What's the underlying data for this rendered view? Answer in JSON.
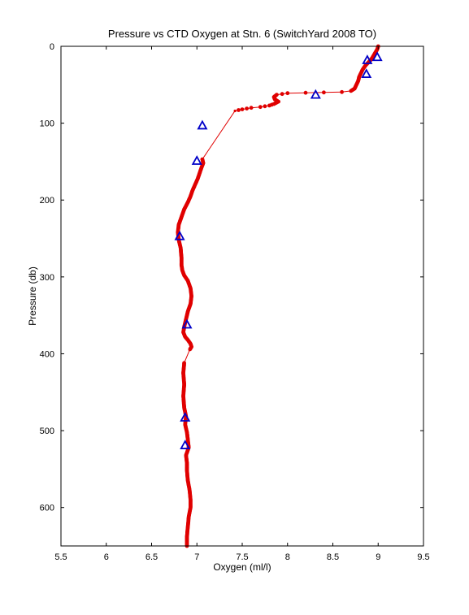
{
  "chart_data": {
    "type": "line",
    "title": "Pressure vs CTD Oxygen at Stn. 6 (SwitchYard 2008 TO)",
    "xlabel": "Oxygen (ml/l)",
    "ylabel": "Pressure (db)",
    "xlim": [
      5.5,
      9.5
    ],
    "ylim": [
      0,
      650
    ],
    "y_reversed": true,
    "grid": false,
    "x_ticks": [
      5.5,
      6,
      6.5,
      7,
      7.5,
      8,
      8.5,
      9,
      9.5
    ],
    "x_tick_labels": [
      "5.5",
      "6",
      "6.5",
      "7",
      "7.5",
      "8",
      "8.5",
      "9",
      "9.5"
    ],
    "y_ticks": [
      0,
      100,
      200,
      300,
      400,
      500,
      600
    ],
    "y_tick_labels": [
      "0",
      "100",
      "200",
      "300",
      "400",
      "500",
      "600"
    ],
    "colors": {
      "ctd": "#e00000",
      "bottle": "#0000c8"
    },
    "series": [
      {
        "style": "line-with-dots",
        "x": [
          9.0,
          8.99,
          8.97,
          8.95,
          8.93,
          8.9,
          8.86,
          8.83,
          8.81,
          8.79,
          8.78,
          8.76,
          8.74,
          8.7,
          8.6,
          8.4,
          8.2,
          8.0,
          7.88,
          7.85,
          7.86,
          7.9,
          7.85,
          7.8,
          7.7,
          7.6,
          7.5,
          7.42,
          7.06,
          7.07,
          7.05,
          7.03,
          7.01,
          6.98,
          6.95,
          6.93,
          6.9,
          6.86,
          6.83,
          6.8,
          6.79,
          6.8,
          6.82,
          6.83,
          6.83,
          6.84,
          6.86,
          6.9,
          6.93,
          6.94,
          6.93,
          6.9,
          6.88,
          6.86,
          6.85,
          6.87,
          6.9,
          6.93,
          6.94,
          6.93,
          6.92,
          6.86,
          6.85,
          6.86,
          6.85,
          6.86,
          6.88,
          6.87,
          6.89,
          6.9,
          6.91,
          6.88,
          6.89,
          6.89,
          6.9,
          6.92,
          6.93,
          6.93,
          6.91,
          6.9,
          6.89,
          6.89
        ],
        "y": [
          0,
          4,
          8,
          12,
          16,
          20,
          25,
          30,
          35,
          40,
          45,
          50,
          55,
          58,
          59.5,
          60,
          60.5,
          61,
          63,
          66,
          69,
          72,
          75,
          77,
          79,
          80,
          82,
          84,
          147,
          152,
          158,
          165,
          172,
          180,
          188,
          195,
          203,
          212,
          222,
          232,
          242,
          252,
          262,
          275,
          285,
          292,
          298,
          305,
          315,
          325,
          335,
          345,
          355,
          365,
          372,
          378,
          382,
          387,
          391,
          393,
          395,
          412,
          425,
          440,
          455,
          470,
          482,
          492,
          502,
          512,
          522,
          532,
          542,
          552,
          565,
          578,
          590,
          600,
          612,
          625,
          638,
          650
        ]
      },
      {
        "style": "triangle-markers",
        "x": [
          8.99,
          8.88,
          8.87,
          8.31,
          7.06,
          7.0,
          6.81,
          6.89,
          6.87,
          6.87
        ],
        "y": [
          14,
          18,
          36,
          63,
          103,
          149,
          247,
          362,
          483,
          519
        ]
      }
    ]
  }
}
